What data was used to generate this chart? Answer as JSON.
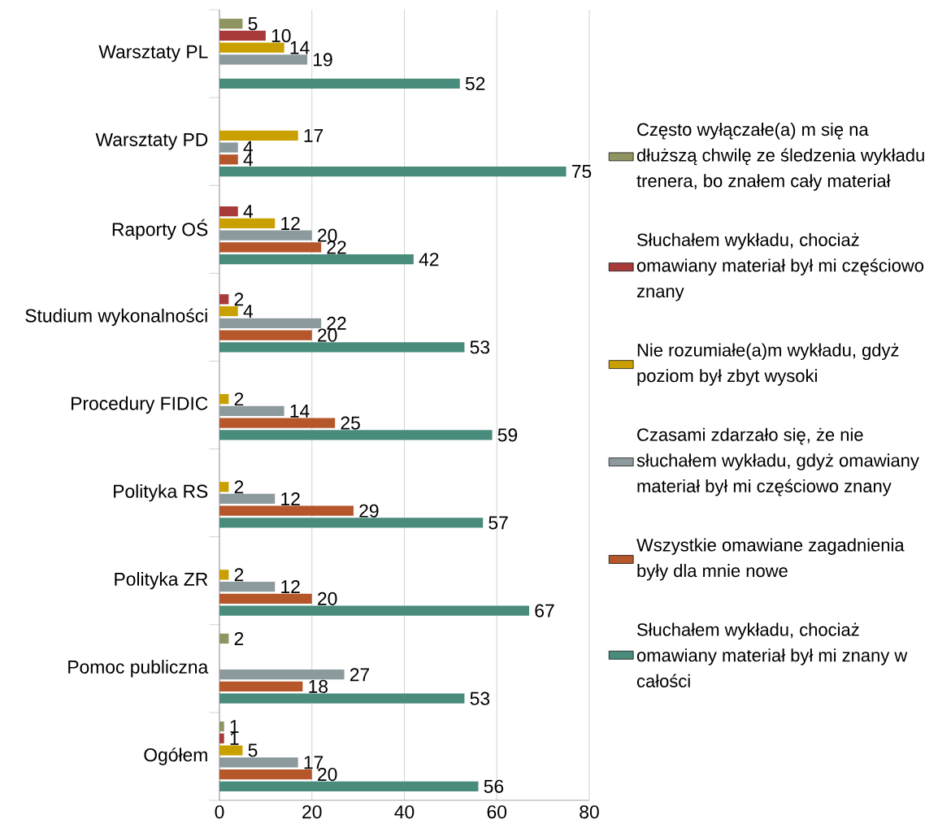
{
  "chart_data": {
    "type": "bar",
    "orientation": "horizontal",
    "categories": [
      "Warsztaty PL",
      "Warsztaty PD",
      "Raporty OŚ",
      "Studium wykonalności",
      "Procedury FIDIC",
      "Polityka RS",
      "Polityka ZR",
      "Pomoc publiczna",
      "Ogółem"
    ],
    "series": [
      {
        "name": "Często wyłączałe(a) m się  na dłuższą chwilę ze  śledzenia wykładu trenera,  bo znałem cały materiał",
        "color": "#8f9460",
        "values": [
          5,
          null,
          null,
          null,
          null,
          null,
          null,
          2,
          1
        ]
      },
      {
        "name": "Słuchałem wykładu, chociaż omawiany materiał był mi częściowo znany",
        "color": "#a83a3a",
        "values": [
          10,
          null,
          4,
          2,
          null,
          null,
          null,
          null,
          1
        ]
      },
      {
        "name": "Nie rozumiałe(a)m  wykładu, gdyż poziom był  zbyt wysoki",
        "color": "#c9a000",
        "values": [
          14,
          17,
          12,
          4,
          2,
          2,
          2,
          null,
          5
        ]
      },
      {
        "name": "Czasami zdarzało się, że nie słuchałem wykładu, gdyż omawiany materiał był mi częściowo znany",
        "color": "#8c9a9e",
        "values": [
          19,
          4,
          20,
          22,
          14,
          12,
          12,
          27,
          17
        ]
      },
      {
        "name": "Wszystkie omawiane  zagadnienia były dla mnie  nowe",
        "color": "#b5562b",
        "values": [
          null,
          4,
          22,
          20,
          25,
          29,
          20,
          18,
          20
        ]
      },
      {
        "name": "Słuchałem wykładu, chociaż omawiany materiał był mi  znany w całości",
        "color": "#4a8c7c",
        "values": [
          52,
          75,
          42,
          53,
          59,
          57,
          67,
          53,
          56
        ]
      }
    ],
    "xlim": [
      0,
      80
    ],
    "xticks": [
      0,
      20,
      40,
      60,
      80
    ],
    "grid": "x",
    "legend": "right",
    "data_labels": true
  }
}
